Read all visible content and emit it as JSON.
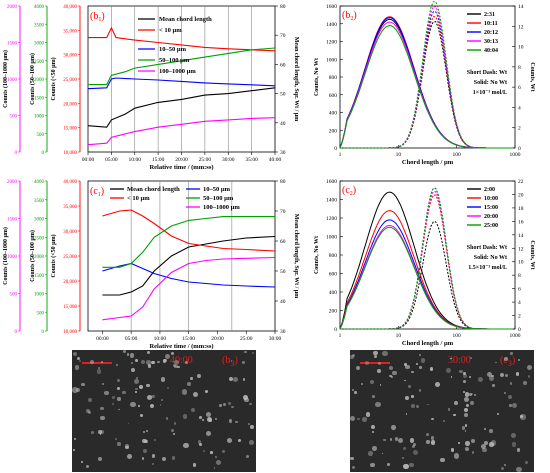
{
  "chart_data": [
    {
      "id": "b1",
      "type": "line",
      "panel_label": "(b",
      "panel_sub": "1",
      "panel_close": ")",
      "xlabel": "Relative time / (mm:ss)",
      "x_ticks": [
        "00:00",
        "05:00",
        "10:00",
        "15:00",
        "20:00",
        "25:00",
        "30:00",
        "35:00",
        "40:00"
      ],
      "xlim": [
        0,
        40
      ],
      "axes": [
        {
          "label": "Counts (100–1000 µm)",
          "color": "#ff00ff",
          "ticks": [
            "0",
            "500",
            "1000",
            "1500",
            "2000"
          ],
          "lim": [
            0,
            2000
          ]
        },
        {
          "label": "Counts (50–100 µm)",
          "color": "#00a000",
          "ticks": [
            "0",
            "500",
            "1000",
            "1500",
            "2000",
            "2500",
            "3000",
            "3500",
            "4000"
          ],
          "lim": [
            0,
            4000
          ]
        },
        {
          "label": "Counts (<50 µm)",
          "color": "#ff0000",
          "ticks": [
            "10,000",
            "15,000",
            "20,000",
            "25,000",
            "30,000",
            "35,000",
            "40,000"
          ],
          "lim": [
            10000,
            40000
          ]
        },
        {
          "label": "Mean chord length, Sqr. Wt / µm",
          "color": "#000000",
          "ticks": [
            "30",
            "40",
            "50",
            "60",
            "70",
            "80"
          ],
          "lim": [
            30,
            80
          ]
        }
      ],
      "series": [
        {
          "name": "Mean chord length",
          "color": "#000000",
          "axis": 3,
          "x": [
            0,
            4,
            5,
            8,
            10,
            15,
            20,
            25,
            30,
            35,
            40
          ],
          "y": [
            39,
            38.5,
            41,
            43,
            45,
            47,
            48,
            49.5,
            50,
            51,
            52
          ]
        },
        {
          "name": "< 10 µm",
          "color": "#ff0000",
          "axis": 2,
          "x": [
            0,
            4,
            5,
            6,
            10,
            15,
            20,
            25,
            30,
            35,
            40
          ],
          "y": [
            33500,
            33500,
            35500,
            33500,
            33000,
            32500,
            32000,
            31500,
            31200,
            31000,
            30800
          ]
        },
        {
          "name": "10–50 µm",
          "color": "#0000ff",
          "axis": 2,
          "x": [
            0,
            4,
            5,
            6,
            10,
            15,
            20,
            25,
            30,
            35,
            40
          ],
          "y": [
            23000,
            23200,
            25000,
            25200,
            25000,
            24800,
            24500,
            24200,
            24000,
            23800,
            23600
          ]
        },
        {
          "name": "50–100 µm",
          "color": "#00a000",
          "axis": 1,
          "x": [
            0,
            4,
            5,
            8,
            10,
            15,
            20,
            25,
            30,
            35,
            40
          ],
          "y": [
            1850,
            1850,
            2100,
            2200,
            2300,
            2400,
            2500,
            2600,
            2700,
            2800,
            2850
          ]
        },
        {
          "name": "100–1000 µm",
          "color": "#ff00ff",
          "axis": 0,
          "x": [
            0,
            4,
            5,
            8,
            10,
            15,
            20,
            25,
            30,
            35,
            40
          ],
          "y": [
            100,
            120,
            200,
            250,
            280,
            340,
            380,
            420,
            440,
            460,
            470
          ]
        }
      ],
      "vlines": [
        5,
        10,
        15,
        20,
        25,
        30,
        35
      ]
    },
    {
      "id": "b2",
      "type": "line",
      "panel_label": "(b",
      "panel_sub": "2",
      "panel_close": ")",
      "xlabel": "Chord length / µm",
      "x_scale": "log",
      "xlim": [
        1,
        1000
      ],
      "x_ticks": [
        "1",
        "10",
        "100",
        "1000"
      ],
      "ylabel_left": "Counts, No Wt",
      "ylabel_right": "Counts, Wt",
      "y_left_ticks": [
        "0",
        "200",
        "400",
        "600",
        "800",
        "1000",
        "1200",
        "1400",
        "1600"
      ],
      "y_left_lim": [
        0,
        1600
      ],
      "y_right_ticks": [
        "0",
        "2",
        "4",
        "6",
        "8",
        "10",
        "12",
        "14"
      ],
      "y_right_lim": [
        0,
        14
      ],
      "legend": [
        "2:31",
        "10:11",
        "20:12",
        "30:13",
        "40:04"
      ],
      "legend_colors": [
        "#000000",
        "#ff0000",
        "#0000ff",
        "#ff00ff",
        "#00a000"
      ],
      "annotations": [
        "Short Dash: Wt",
        "Solid: No Wt",
        "1×10⁻³ mol/L"
      ],
      "solid_peaks": [
        1450,
        1480,
        1470,
        1420,
        1380
      ],
      "dash_peaks": [
        12.5,
        13,
        13.5,
        14,
        14.5
      ]
    },
    {
      "id": "c1",
      "type": "line",
      "panel_label": "(c",
      "panel_sub": "1",
      "panel_close": ")",
      "xlabel": "Relative time / (mm:ss)",
      "x_ticks": [
        "00:00",
        "05:00",
        "10:00",
        "15:00",
        "20:00",
        "25:00",
        "30:00"
      ],
      "xlim": [
        -2.5,
        30
      ],
      "axes": [
        {
          "label": "Counts (100–1000 µm)",
          "color": "#ff00ff",
          "ticks": [
            "0",
            "500",
            "1000",
            "1500",
            "2000"
          ],
          "lim": [
            0,
            2000
          ]
        },
        {
          "label": "Counts (50–100 µm)",
          "color": "#00a000",
          "ticks": [
            "0",
            "500",
            "1000",
            "1500",
            "2000",
            "2500",
            "3000",
            "3500",
            "4000"
          ],
          "lim": [
            0,
            4000
          ]
        },
        {
          "label": "Counts (<50 µm)",
          "color": "#ff0000",
          "ticks": [
            "10,000",
            "15,000",
            "20,000",
            "25,000",
            "30,000",
            "35,000",
            "40,000"
          ],
          "lim": [
            10000,
            40000
          ]
        },
        {
          "label": "Mean chord length, Sqr. Wt / µm",
          "color": "#000000",
          "ticks": [
            "30",
            "40",
            "50",
            "60",
            "70",
            "80"
          ],
          "lim": [
            30,
            80
          ]
        }
      ],
      "series": [
        {
          "name": "Mean chord length",
          "color": "#000000",
          "axis": 3,
          "x": [
            0,
            3,
            5,
            7,
            9,
            12,
            15,
            18,
            21,
            25,
            30
          ],
          "y": [
            42,
            42,
            43,
            45,
            50,
            55,
            58,
            59,
            60,
            61,
            61.5
          ]
        },
        {
          "name": "< 10 µm",
          "color": "#ff0000",
          "axis": 2,
          "x": [
            0,
            3,
            5,
            7,
            9,
            12,
            15,
            18,
            21,
            25,
            30
          ],
          "y": [
            33000,
            34000,
            34200,
            33000,
            31500,
            29000,
            27500,
            27000,
            26500,
            26300,
            26000
          ]
        },
        {
          "name": "10–50 µm",
          "color": "#0000ff",
          "axis": 2,
          "x": [
            0,
            3,
            5,
            7,
            9,
            12,
            15,
            18,
            21,
            25,
            30
          ],
          "y": [
            22000,
            23000,
            23500,
            22500,
            21500,
            20500,
            19800,
            19500,
            19200,
            19000,
            18800
          ]
        },
        {
          "name": "50–100 µm",
          "color": "#00a000",
          "axis": 1,
          "x": [
            0,
            3,
            5,
            7,
            9,
            12,
            15,
            18,
            21,
            25,
            30
          ],
          "y": [
            1700,
            1700,
            1800,
            2100,
            2500,
            2800,
            2950,
            3000,
            3050,
            3050,
            3050
          ]
        },
        {
          "name": "100–1000 µm",
          "color": "#ff00ff",
          "axis": 0,
          "x": [
            0,
            3,
            5,
            7,
            9,
            12,
            15,
            18,
            21,
            25,
            30
          ],
          "y": [
            150,
            180,
            200,
            320,
            560,
            780,
            900,
            940,
            960,
            970,
            980
          ]
        }
      ],
      "legend_left": [
        "Mean chord length",
        "< 10 µm"
      ],
      "legend_right": [
        "10–50 µm",
        "50–100 µm",
        "100–1000 µm"
      ],
      "vlines": [
        5,
        10,
        15,
        22.5
      ]
    },
    {
      "id": "c2",
      "type": "line",
      "panel_label": "(c",
      "panel_sub": "2",
      "panel_close": ")",
      "xlabel": "Chord length / µm",
      "x_scale": "log",
      "xlim": [
        1,
        1000
      ],
      "x_ticks": [
        "1",
        "10",
        "100",
        "1000"
      ],
      "ylabel_left": "Counts, No Wt",
      "ylabel_right": "Counts, Wt",
      "y_left_ticks": [
        "0",
        "200",
        "400",
        "600",
        "800",
        "1000",
        "1200",
        "1400",
        "1600"
      ],
      "y_left_lim": [
        0,
        1600
      ],
      "y_right_ticks": [
        "0",
        "2",
        "4",
        "6",
        "8",
        "10",
        "12",
        "14",
        "16",
        "18",
        "20",
        "22"
      ],
      "y_right_lim": [
        0,
        22
      ],
      "legend": [
        "2:00",
        "10:00",
        "15:00",
        "20:00",
        "25:00"
      ],
      "legend_colors": [
        "#000000",
        "#ff0000",
        "#0000ff",
        "#ff00ff",
        "#00a000"
      ],
      "annotations": [
        "Short Dash: Wt",
        "Solid: No Wt",
        "1.5×10⁻³ mol/L"
      ],
      "solid_peaks": [
        1480,
        1280,
        1180,
        1120,
        1100
      ],
      "dash_peaks": [
        16,
        20,
        21,
        20.5,
        21
      ]
    }
  ],
  "images": [
    {
      "label": "40:00",
      "panel": "(b",
      "sub": "3",
      "close": ")"
    },
    {
      "label": "30:00",
      "panel": "(c",
      "sub": "3",
      "close": ")"
    }
  ]
}
